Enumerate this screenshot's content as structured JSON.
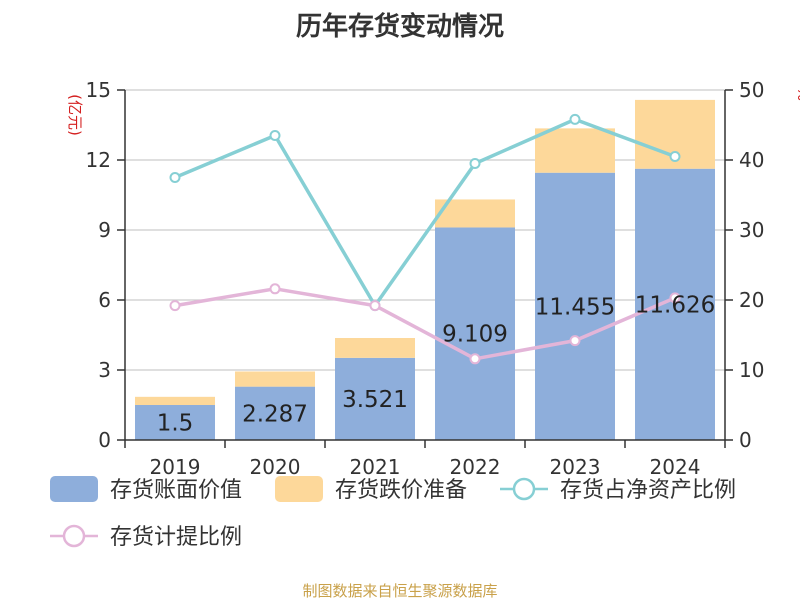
{
  "chart_data": {
    "type": "bar",
    "title": "历年存货变动情况",
    "categories": [
      "2019",
      "2020",
      "2021",
      "2022",
      "2023",
      "2024"
    ],
    "y_left": {
      "unit_label": "(亿元)",
      "ylim": [
        0,
        15
      ],
      "ticks": [
        "0",
        "3",
        "6",
        "9",
        "12",
        "15"
      ]
    },
    "y_right": {
      "unit_label": "%",
      "ylim": [
        0,
        50
      ],
      "ticks": [
        "0",
        "10",
        "20",
        "30",
        "40",
        "50"
      ]
    },
    "series": [
      {
        "name": "存货账面价值",
        "kind": "bar",
        "stack": "inv",
        "axis": "left",
        "color": "#8eaedb",
        "values": [
          1.5,
          2.287,
          3.521,
          9.109,
          11.455,
          11.626
        ],
        "labels": [
          "1.5",
          "2.287",
          "3.521",
          "9.109",
          "11.455",
          "11.626"
        ]
      },
      {
        "name": "存货跌价准备",
        "kind": "bar",
        "stack": "inv",
        "axis": "left",
        "color": "#fdd89a",
        "values": [
          0.35,
          0.65,
          0.85,
          1.2,
          1.9,
          2.95
        ]
      },
      {
        "name": "存货占净资产比例",
        "kind": "line",
        "axis": "right",
        "color": "#86cfd4",
        "values": [
          37.5,
          43.5,
          19.2,
          39.5,
          45.8,
          40.5
        ]
      },
      {
        "name": "存货计提比例",
        "kind": "line",
        "axis": "right",
        "color": "#e3b5d8",
        "values": [
          19.2,
          21.6,
          19.2,
          11.6,
          14.2,
          20.3
        ]
      }
    ],
    "grid": true,
    "legend_position": "bottom"
  },
  "footer": {
    "source": "制图数据来自恒生聚源数据库"
  }
}
